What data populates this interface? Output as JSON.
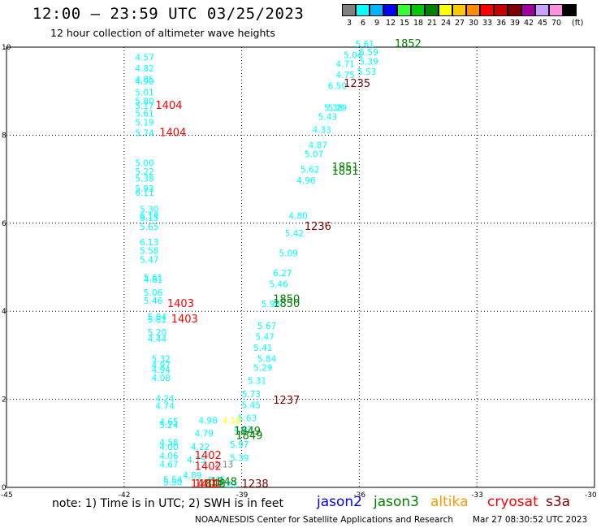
{
  "header": {
    "title": "12:00 – 23:59 UTC 03/25/2023",
    "subtitle": "12 hour collection of altimeter wave heights"
  },
  "color_scale": {
    "unit": "(ft)",
    "bins": [
      {
        "label": "3",
        "color": "#7f7f7f"
      },
      {
        "label": "6",
        "color": "#00ffff"
      },
      {
        "label": "9",
        "color": "#00b4ff"
      },
      {
        "label": "12",
        "color": "#0000ff"
      },
      {
        "label": "15",
        "color": "#33ff33"
      },
      {
        "label": "18",
        "color": "#00c800"
      },
      {
        "label": "21",
        "color": "#008000"
      },
      {
        "label": "24",
        "color": "#ffff00"
      },
      {
        "label": "27",
        "color": "#ffc800"
      },
      {
        "label": "30",
        "color": "#ff8c00"
      },
      {
        "label": "33",
        "color": "#ff0000"
      },
      {
        "label": "36",
        "color": "#c80000"
      },
      {
        "label": "39",
        "color": "#800000"
      },
      {
        "label": "42",
        "color": "#a000a0"
      },
      {
        "label": "45",
        "color": "#c8a0ff"
      },
      {
        "label": "70",
        "color": "#ff90e0"
      },
      {
        "label": "",
        "color": "#000000"
      }
    ]
  },
  "footer": {
    "note": "note: 1) Time is in UTC; 2) SWH is in feet",
    "credit": "NOAA/NESDIS Center for Satellite Applications and Research",
    "timestamp": "Mar 27 08:30:52 UTC 2023"
  },
  "satellites": [
    {
      "name": "jason2",
      "color": "#0000ff"
    },
    {
      "name": "jason3",
      "color": "#008000"
    },
    {
      "name": "altika",
      "color": "#ff9900"
    },
    {
      "name": "cryosat",
      "color": "#ff0000"
    },
    {
      "name": "s3a",
      "color": "#800000"
    }
  ],
  "chart_data": {
    "type": "scatter",
    "x_ticks": [
      "-45",
      "-42",
      "-39",
      "-36",
      "-33",
      "-30"
    ],
    "y_ticks": [
      "0",
      "2",
      "4",
      "6",
      "8",
      "10"
    ],
    "xlim": [
      -45,
      -30
    ],
    "ylim": [
      0,
      10
    ],
    "grid": true,
    "series": [
      {
        "satellite": "s3a-west-track",
        "color": "#00ffff",
        "points": [
          {
            "x": -41.72,
            "y": 9.7,
            "label": "4.57"
          },
          {
            "x": -41.72,
            "y": 9.45,
            "label": "4.82"
          },
          {
            "x": -41.72,
            "y": 9.2,
            "label": "4.85"
          },
          {
            "x": -41.72,
            "y": 9.15,
            "label": "4.90"
          },
          {
            "x": -41.72,
            "y": 8.9,
            "label": "5.01"
          },
          {
            "x": -41.72,
            "y": 8.7,
            "label": "5.80"
          },
          {
            "x": -41.72,
            "y": 8.6,
            "label": "5.17"
          },
          {
            "x": -41.72,
            "y": 8.42,
            "label": "5.61"
          },
          {
            "x": -41.72,
            "y": 8.22,
            "label": "5.19"
          },
          {
            "x": -41.72,
            "y": 7.98,
            "label": "5.74"
          },
          {
            "x": -41.72,
            "y": 7.3,
            "label": "5.00"
          },
          {
            "x": -41.72,
            "y": 7.1,
            "label": "5.22"
          },
          {
            "x": -41.72,
            "y": 6.95,
            "label": "5.38"
          },
          {
            "x": -41.72,
            "y": 6.72,
            "label": "5.93"
          },
          {
            "x": -41.72,
            "y": 6.62,
            "label": "6.11"
          },
          {
            "x": -41.6,
            "y": 6.25,
            "label": "5.30"
          },
          {
            "x": -41.6,
            "y": 6.1,
            "label": "6.19"
          },
          {
            "x": -41.6,
            "y": 6.05,
            "label": "6.15"
          },
          {
            "x": -41.6,
            "y": 5.85,
            "label": "5.65"
          },
          {
            "x": -41.6,
            "y": 5.5,
            "label": "6.13"
          },
          {
            "x": -41.6,
            "y": 5.3,
            "label": "5.58"
          },
          {
            "x": -41.6,
            "y": 5.1,
            "label": "5.47"
          },
          {
            "x": -41.5,
            "y": 4.7,
            "label": "5.61"
          },
          {
            "x": -41.5,
            "y": 4.65,
            "label": "4.81"
          },
          {
            "x": -41.5,
            "y": 4.35,
            "label": "5.06"
          },
          {
            "x": -41.5,
            "y": 4.17,
            "label": "5.46"
          },
          {
            "x": -41.4,
            "y": 3.8,
            "label": "5.04"
          },
          {
            "x": -41.4,
            "y": 3.75,
            "label": "5.81"
          },
          {
            "x": -41.4,
            "y": 3.45,
            "label": "5.20"
          },
          {
            "x": -41.4,
            "y": 3.3,
            "label": "4.44"
          },
          {
            "x": -41.3,
            "y": 2.85,
            "label": "5.32"
          },
          {
            "x": -41.3,
            "y": 2.7,
            "label": "4.97"
          },
          {
            "x": -41.3,
            "y": 2.6,
            "label": "4.94"
          },
          {
            "x": -41.3,
            "y": 2.42,
            "label": "4.08"
          },
          {
            "x": -41.2,
            "y": 1.95,
            "label": "4.24"
          },
          {
            "x": -41.2,
            "y": 1.78,
            "label": "4.74"
          },
          {
            "x": -41.1,
            "y": 1.42,
            "label": "4.65"
          },
          {
            "x": -41.1,
            "y": 1.35,
            "label": "5.24"
          },
          {
            "x": -41.1,
            "y": 0.95,
            "label": "4.58"
          },
          {
            "x": -41.1,
            "y": 0.85,
            "label": "4.00"
          },
          {
            "x": -41.1,
            "y": 0.65,
            "label": "4.06"
          },
          {
            "x": -41.1,
            "y": 0.45,
            "label": "4.67"
          },
          {
            "x": -41.0,
            "y": 0.1,
            "label": "5.54"
          },
          {
            "x": -41.0,
            "y": 0.05,
            "label": "5.50"
          }
        ]
      },
      {
        "satellite": "s3a-east-track",
        "color": "#00ffff",
        "points": [
          {
            "x": -36.1,
            "y": 10.0,
            "label": "5.61"
          },
          {
            "x": -36.0,
            "y": 9.82,
            "label": "5.59"
          },
          {
            "x": -36.0,
            "y": 9.6,
            "label": "5.39"
          },
          {
            "x": -36.05,
            "y": 9.37,
            "label": "5.53"
          },
          {
            "x": -36.4,
            "y": 9.75,
            "label": "5.04"
          },
          {
            "x": -36.6,
            "y": 9.55,
            "label": "4.71"
          },
          {
            "x": -36.6,
            "y": 9.3,
            "label": "4.75"
          },
          {
            "x": -36.8,
            "y": 9.05,
            "label": "6.50"
          },
          {
            "x": -36.8,
            "y": 8.55,
            "label": "5.29"
          },
          {
            "x": -36.9,
            "y": 8.55,
            "label": "5.38"
          },
          {
            "x": -37.05,
            "y": 8.35,
            "label": "5.43"
          },
          {
            "x": -37.2,
            "y": 8.05,
            "label": "4.33"
          },
          {
            "x": -37.3,
            "y": 7.7,
            "label": "4.87"
          },
          {
            "x": -37.4,
            "y": 7.5,
            "label": "5.07"
          },
          {
            "x": -37.5,
            "y": 7.15,
            "label": "5.62"
          },
          {
            "x": -37.6,
            "y": 6.9,
            "label": "4.96"
          },
          {
            "x": -37.8,
            "y": 6.1,
            "label": "4.80"
          },
          {
            "x": -37.9,
            "y": 5.7,
            "label": "5.42"
          },
          {
            "x": -38.05,
            "y": 5.25,
            "label": "5.09"
          },
          {
            "x": -38.2,
            "y": 4.8,
            "label": "6.27"
          },
          {
            "x": -38.3,
            "y": 4.55,
            "label": "5.46"
          },
          {
            "x": -38.5,
            "y": 4.1,
            "label": "5.98"
          },
          {
            "x": -38.6,
            "y": 3.6,
            "label": "5.67"
          },
          {
            "x": -38.65,
            "y": 3.35,
            "label": "5.47"
          },
          {
            "x": -38.7,
            "y": 3.1,
            "label": "5.41"
          },
          {
            "x": -38.6,
            "y": 2.85,
            "label": "5.84"
          },
          {
            "x": -38.7,
            "y": 2.65,
            "label": "5.29"
          },
          {
            "x": -38.85,
            "y": 2.35,
            "label": "5.31"
          },
          {
            "x": -39.0,
            "y": 2.05,
            "label": "5.73"
          },
          {
            "x": -39.0,
            "y": 1.8,
            "label": "5.45"
          },
          {
            "x": -39.1,
            "y": 1.5,
            "label": "5.63"
          },
          {
            "x": -39.2,
            "y": 1.25,
            "label": "4.82"
          },
          {
            "x": -39.3,
            "y": 0.9,
            "label": "5.97"
          },
          {
            "x": -39.3,
            "y": 0.6,
            "label": "5.39"
          },
          {
            "x": -39.6,
            "y": 0.0,
            "label": "5.21"
          },
          {
            "x": -39.9,
            "y": 0.1,
            "label": "4.45"
          },
          {
            "x": -40.1,
            "y": 1.45,
            "label": "4.98"
          },
          {
            "x": -40.2,
            "y": 1.15,
            "label": "4.79"
          },
          {
            "x": -40.3,
            "y": 0.85,
            "label": "4.22"
          },
          {
            "x": -40.4,
            "y": 0.55,
            "label": "4.75"
          },
          {
            "x": -40.5,
            "y": 0.2,
            "label": "4.89"
          }
        ]
      },
      {
        "satellite": "altika",
        "color": "#ffff00",
        "points": [
          {
            "x": -39.5,
            "y": 1.45,
            "label": "4.18"
          }
        ]
      },
      {
        "satellite": "gray",
        "color": "#7f7f7f",
        "points": [
          {
            "x": -39.7,
            "y": 0.45,
            "label": "2.13"
          }
        ]
      }
    ],
    "pass_labels": [
      {
        "x": -35.1,
        "y": 10.0,
        "label": "1852",
        "color": "#008000"
      },
      {
        "x": -36.4,
        "y": 9.1,
        "label": "1235",
        "color": "#800000"
      },
      {
        "x": -41.2,
        "y": 8.6,
        "label": "1404",
        "color": "#ff0000"
      },
      {
        "x": -41.1,
        "y": 7.98,
        "label": "1404",
        "color": "#ff0000"
      },
      {
        "x": -36.7,
        "y": 7.2,
        "label": "1851",
        "color": "#008000"
      },
      {
        "x": -36.7,
        "y": 7.1,
        "label": "1851",
        "color": "#008000"
      },
      {
        "x": -37.4,
        "y": 5.85,
        "label": "1236",
        "color": "#800000"
      },
      {
        "x": -38.2,
        "y": 4.2,
        "label": "1850",
        "color": "#008000"
      },
      {
        "x": -38.2,
        "y": 4.1,
        "label": "1850",
        "color": "#008000"
      },
      {
        "x": -40.9,
        "y": 4.1,
        "label": "1403",
        "color": "#ff0000"
      },
      {
        "x": -40.8,
        "y": 3.75,
        "label": "1403",
        "color": "#ff0000"
      },
      {
        "x": -38.2,
        "y": 1.9,
        "label": "1237",
        "color": "#800000"
      },
      {
        "x": -39.2,
        "y": 1.2,
        "label": "1849",
        "color": "#008000"
      },
      {
        "x": -39.15,
        "y": 1.1,
        "label": "1849",
        "color": "#008000"
      },
      {
        "x": -40.2,
        "y": 0.65,
        "label": "1402",
        "color": "#ff0000"
      },
      {
        "x": -40.2,
        "y": 0.4,
        "label": "1402",
        "color": "#ff0000"
      },
      {
        "x": -39.8,
        "y": 0.05,
        "label": "1848",
        "color": "#008000"
      },
      {
        "x": -40.1,
        "y": 0.0,
        "label": "1848",
        "color": "#008000"
      },
      {
        "x": -40.2,
        "y": 0.0,
        "label": "1401",
        "color": "#ff0000"
      },
      {
        "x": -40.3,
        "y": 0.0,
        "label": "1401",
        "color": "#ff0000"
      },
      {
        "x": -39.0,
        "y": 0.0,
        "label": "1238",
        "color": "#800000"
      }
    ]
  }
}
